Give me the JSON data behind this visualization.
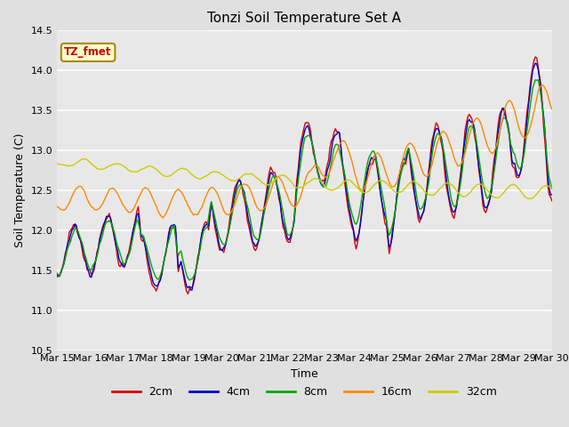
{
  "title": "Tonzi Soil Temperature Set A",
  "xlabel": "Time",
  "ylabel": "Soil Temperature (C)",
  "ylim": [
    10.5,
    14.5
  ],
  "annotation": "TZ_fmet",
  "series_colors": {
    "2cm": "#dd0000",
    "4cm": "#0000cc",
    "8cm": "#00aa00",
    "16cm": "#ff8800",
    "32cm": "#cccc00"
  },
  "xtick_labels": [
    "Mar 15",
    "Mar 16",
    "Mar 17",
    "Mar 18",
    "Mar 19",
    "Mar 20",
    "Mar 21",
    "Mar 22",
    "Mar 23",
    "Mar 24",
    "Mar 25",
    "Mar 26",
    "Mar 27",
    "Mar 28",
    "Mar 29",
    "Mar 30"
  ],
  "bg_color": "#e8e8e8",
  "fig_bg_color": "#e0e0e0",
  "legend_entries": [
    "2cm",
    "4cm",
    "8cm",
    "16cm",
    "32cm"
  ]
}
